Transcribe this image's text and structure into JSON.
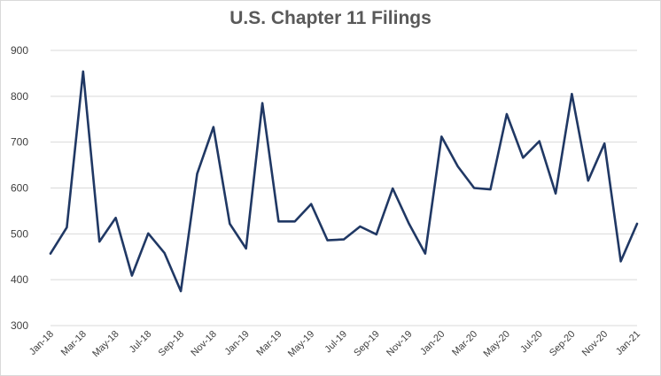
{
  "chart_data": {
    "type": "line",
    "title": "U.S. Chapter 11 Filings",
    "xlabel": "",
    "ylabel": "",
    "ylim": [
      300,
      900
    ],
    "yticks": [
      300,
      400,
      500,
      600,
      700,
      800,
      900
    ],
    "grid": "horizontal",
    "line_color": "#203864",
    "x": [
      "Jan-18",
      "Feb-18",
      "Mar-18",
      "Apr-18",
      "May-18",
      "Jun-18",
      "Jul-18",
      "Aug-18",
      "Sep-18",
      "Oct-18",
      "Nov-18",
      "Dec-18",
      "Jan-19",
      "Feb-19",
      "Mar-19",
      "Apr-19",
      "May-19",
      "Jun-19",
      "Jul-19",
      "Aug-19",
      "Sep-19",
      "Oct-19",
      "Nov-19",
      "Dec-19",
      "Jan-20",
      "Feb-20",
      "Mar-20",
      "Apr-20",
      "May-20",
      "Jun-20",
      "Jul-20",
      "Aug-20",
      "Sep-20",
      "Oct-20",
      "Nov-20",
      "Dec-20",
      "Jan-21"
    ],
    "xtick_labels": [
      "Jan-18",
      "Mar-18",
      "May-18",
      "Jul-18",
      "Sep-18",
      "Nov-18",
      "Jan-19",
      "Mar-19",
      "May-19",
      "Jul-19",
      "Sep-19",
      "Nov-19",
      "Jan-20",
      "Mar-20",
      "May-20",
      "Jul-20",
      "Sep-20",
      "Nov-20",
      "Jan-21"
    ],
    "series": [
      {
        "values": [
          457,
          514,
          854,
          483,
          535,
          409,
          501,
          458,
          375,
          631,
          733,
          522,
          468,
          785,
          527,
          527,
          565,
          486,
          488,
          516,
          499,
          599,
          522,
          457,
          712,
          647,
          600,
          597,
          761,
          666,
          702,
          588,
          805,
          616,
          697,
          440,
          522
        ]
      }
    ]
  }
}
